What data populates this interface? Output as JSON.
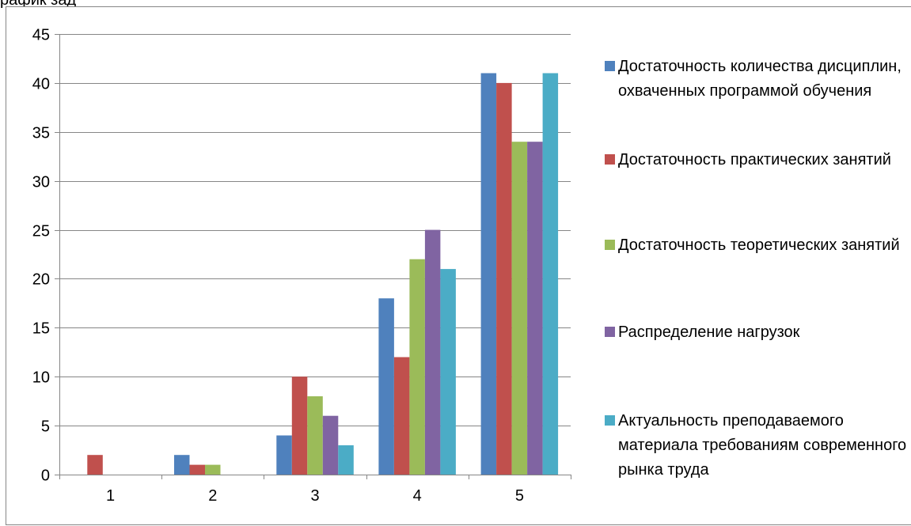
{
  "page": {
    "top_fragment": "рафик зад"
  },
  "colors": {
    "axis": "#868686",
    "grid": "#868686"
  },
  "chart_data": {
    "type": "bar",
    "title": "",
    "xlabel": "",
    "ylabel": "",
    "categories": [
      "1",
      "2",
      "3",
      "4",
      "5"
    ],
    "ylim": [
      0,
      45
    ],
    "yticks": [
      0,
      5,
      10,
      15,
      20,
      25,
      30,
      35,
      40,
      45
    ],
    "grid": true,
    "legend_position": "right",
    "series": [
      {
        "name": "Достаточность количества дисциплин, охваченных программой обучения",
        "color": "#4F81BD",
        "values": [
          0,
          2,
          4,
          18,
          41
        ]
      },
      {
        "name": "Достаточность практических занятий",
        "color": "#C0504D",
        "values": [
          2,
          1,
          10,
          12,
          40
        ]
      },
      {
        "name": "Достаточность теоретических занятий",
        "color": "#9BBB59",
        "values": [
          0,
          1,
          8,
          22,
          34
        ]
      },
      {
        "name": "Распределение нагрузок",
        "color": "#8064A2",
        "values": [
          0,
          0,
          6,
          25,
          34
        ]
      },
      {
        "name": "Актуальность преподаваемого материала требованиям современного рынка труда",
        "color": "#4BACC6",
        "values": [
          0,
          0,
          3,
          21,
          41
        ]
      }
    ]
  }
}
